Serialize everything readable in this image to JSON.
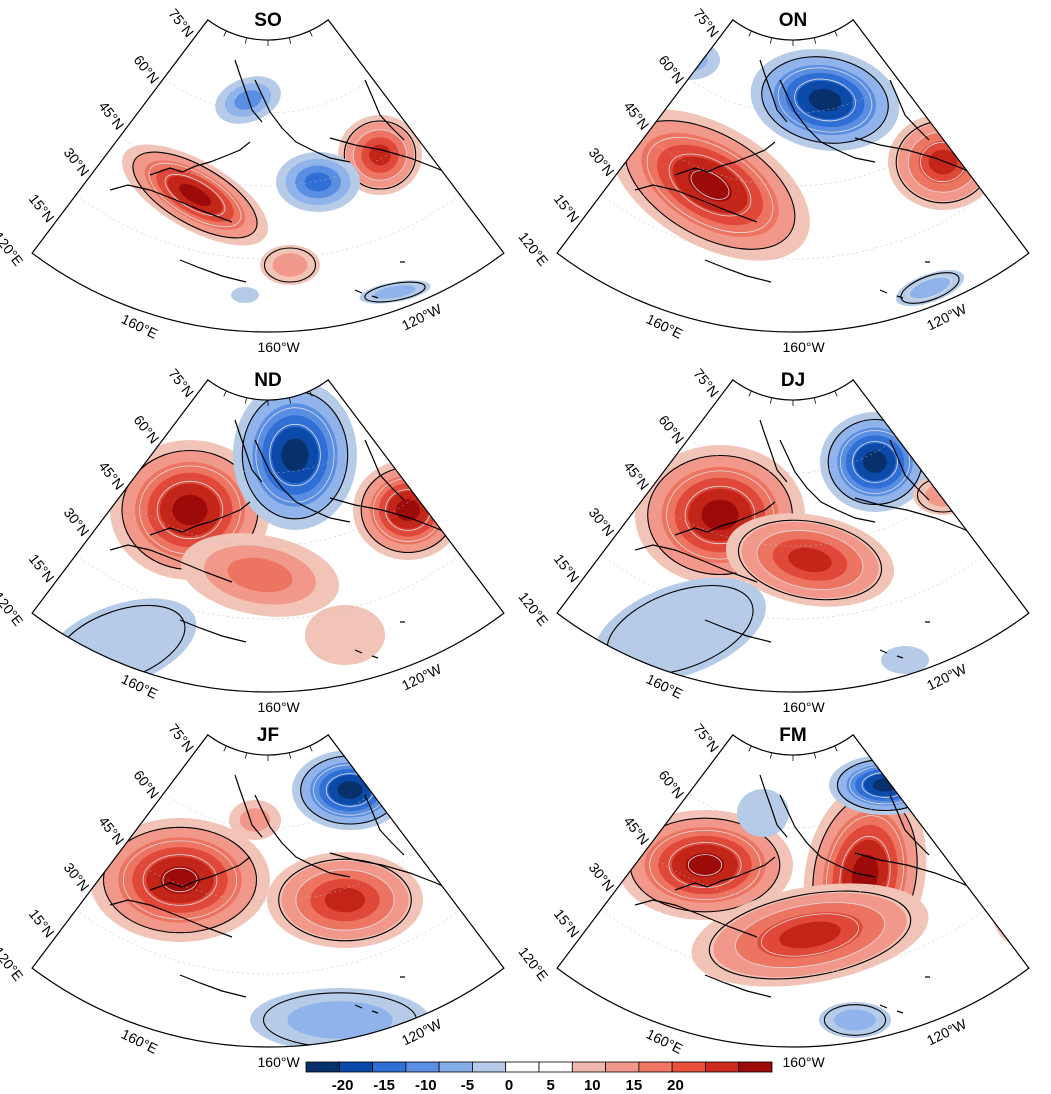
{
  "figure": {
    "panels": [
      {
        "id": "SO",
        "title": "SO",
        "lat_labels": [
          "75°N",
          "60°N",
          "45°N",
          "30°N",
          "15°N"
        ],
        "lon_labels": [
          "120°E",
          "160°E",
          "160°W",
          "120°W"
        ]
      },
      {
        "id": "ON",
        "title": "ON",
        "lat_labels": [
          "75°N",
          "60°N",
          "45°N",
          "30°N",
          "15°N"
        ],
        "lon_labels": [
          "120°E",
          "160°E",
          "160°W",
          "120°W"
        ]
      },
      {
        "id": "ND",
        "title": "ND",
        "lat_labels": [
          "75°N",
          "60°N",
          "45°N",
          "30°N",
          "15°N"
        ],
        "lon_labels": [
          "120°E",
          "160°E",
          "160°W",
          "120°W"
        ]
      },
      {
        "id": "DJ",
        "title": "DJ",
        "lat_labels": [
          "75°N",
          "60°N",
          "45°N",
          "30°N",
          "15°N"
        ],
        "lon_labels": [
          "120°E",
          "160°E",
          "160°W",
          "120°W"
        ]
      },
      {
        "id": "JF",
        "title": "JF",
        "lat_labels": [
          "75°N",
          "60°N",
          "45°N",
          "30°N",
          "15°N"
        ],
        "lon_labels": [
          "120°E",
          "160°E",
          "160°W",
          "120°W"
        ]
      },
      {
        "id": "FM",
        "title": "FM",
        "lat_labels": [
          "75°N",
          "60°N",
          "45°N",
          "30°N",
          "15°N"
        ],
        "lon_labels": [
          "120°E",
          "160°E",
          "160°W",
          "120°W"
        ]
      }
    ],
    "colorbar": {
      "labels": [
        "-20",
        "-15",
        "-10",
        "-5",
        "0",
        "5",
        "10",
        "15",
        "20"
      ],
      "colors": [
        "#08306b",
        "#0b4aa8",
        "#2f6fd6",
        "#5a8ee3",
        "#86aee8",
        "#b5cbe8",
        "#ffffff",
        "#ffffff",
        "#f0b8ad",
        "#f2988a",
        "#f07763",
        "#e8513c",
        "#cc2a1f",
        "#9c0a0a"
      ]
    },
    "colors": {
      "warm_max": "#9c0a0a",
      "cool_max": "#08306b"
    }
  }
}
